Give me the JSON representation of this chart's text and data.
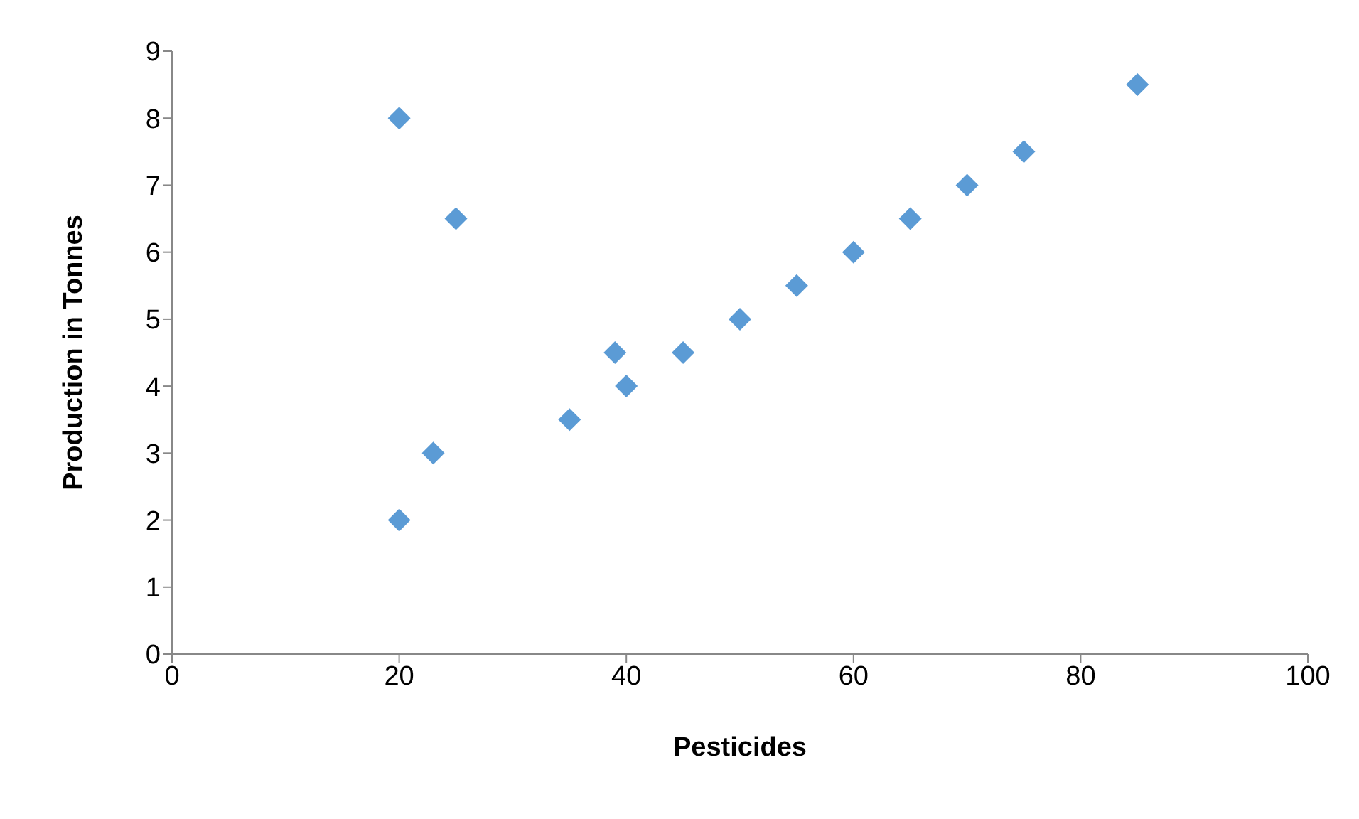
{
  "chart_data": {
    "type": "scatter",
    "xlabel": "Pesticides",
    "ylabel": "Production in Tonnes",
    "x": [
      20,
      25,
      23,
      20,
      35,
      39,
      40,
      45,
      50,
      55,
      60,
      65,
      70,
      75,
      85
    ],
    "series": [
      {
        "color": "#5b9bd5",
        "values": [
          8,
          6.5,
          3,
          2,
          3.5,
          4.5,
          4,
          4.5,
          5,
          5.5,
          6,
          6.5,
          7,
          7.5,
          8.5
        ]
      }
    ],
    "xlim": [
      0,
      100
    ],
    "xticks": [
      0,
      20,
      40,
      60,
      80,
      100
    ],
    "ylim": [
      0,
      9
    ],
    "yticks": [
      0,
      1,
      2,
      3,
      4,
      5,
      6,
      7,
      8,
      9
    ],
    "grid": false,
    "marker": "diamond"
  }
}
